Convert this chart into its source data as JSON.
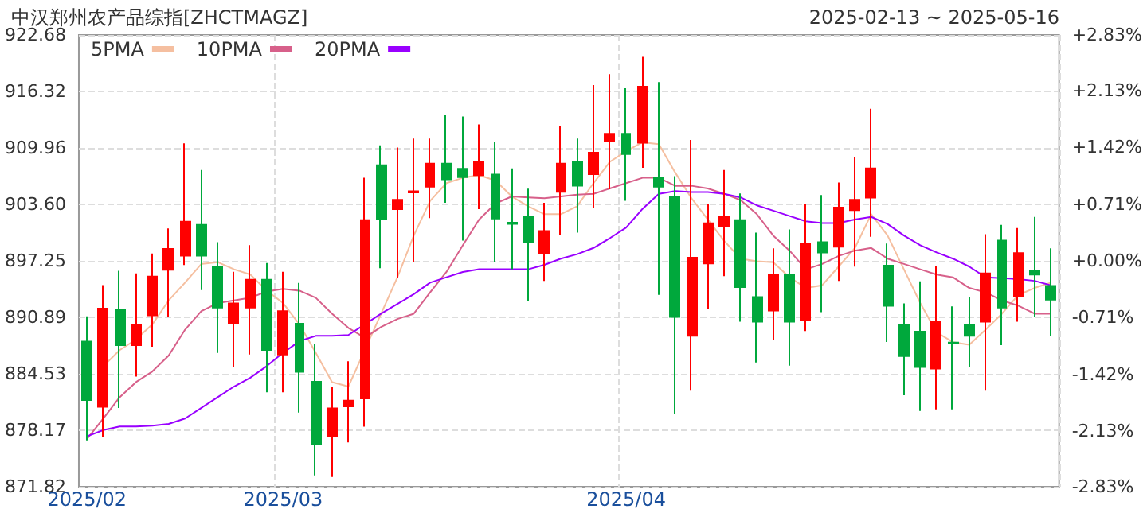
{
  "chart_data": {
    "type": "candlestick",
    "title": "中汉郑州农产品综指[ZHCTMAGZ]",
    "subtitle": "2025-02-13 ~ 2025-05-16",
    "categories": [
      "2025/02",
      null,
      null,
      null,
      null,
      null,
      null,
      null,
      null,
      null,
      null,
      null,
      "2025/03",
      null,
      null,
      null,
      null,
      null,
      null,
      null,
      null,
      null,
      null,
      null,
      null,
      null,
      null,
      null,
      null,
      null,
      null,
      null,
      null,
      "2025/04",
      null,
      null,
      null,
      null,
      null,
      null,
      null,
      null,
      null,
      null,
      null,
      null,
      null,
      null,
      null,
      null,
      null,
      null,
      null,
      null,
      null,
      null,
      null,
      null,
      null,
      null
    ],
    "ohlc": [
      [
        888.17,
        891.0,
        877.04,
        881.58
      ],
      [
        880.81,
        894.53,
        877.46,
        891.88
      ],
      [
        891.77,
        896.12,
        880.69,
        887.76
      ],
      [
        887.76,
        895.83,
        884.23,
        890.0
      ],
      [
        891.12,
        898.07,
        887.58,
        895.48
      ],
      [
        896.24,
        900.89,
        890.94,
        898.6
      ],
      [
        897.83,
        910.49,
        896.77,
        901.66
      ],
      [
        901.31,
        907.49,
        893.95,
        897.83
      ],
      [
        896.54,
        899.36,
        886.88,
        892.0
      ],
      [
        890.24,
        896.01,
        885.29,
        892.47
      ],
      [
        892.0,
        899.01,
        886.7,
        895.12
      ],
      [
        895.12,
        897.01,
        882.46,
        887.23
      ],
      [
        886.7,
        896.01,
        882.46,
        891.59
      ],
      [
        890.18,
        894.77,
        880.17,
        884.76
      ],
      [
        883.64,
        887.88,
        873.1,
        876.63
      ],
      [
        877.51,
        883.11,
        872.92,
        880.64
      ],
      [
        880.87,
        885.94,
        876.81,
        881.52
      ],
      [
        881.75,
        906.61,
        878.57,
        901.84
      ],
      [
        908.02,
        910.26,
        896.42,
        901.9
      ],
      [
        903.07,
        910.02,
        895.3,
        904.13
      ],
      [
        904.96,
        911.02,
        897.07,
        905.08
      ],
      [
        905.6,
        911.02,
        902.07,
        908.2
      ],
      [
        908.2,
        913.67,
        903.78,
        906.43
      ],
      [
        907.61,
        913.5,
        899.54,
        906.67
      ],
      [
        906.9,
        912.61,
        903.07,
        908.37
      ],
      [
        906.96,
        910.67,
        897.07,
        902.01
      ],
      [
        901.54,
        907.67,
        896.3,
        901.42
      ],
      [
        902.19,
        905.37,
        892.71,
        899.37
      ],
      [
        898.13,
        903.78,
        895.0,
        900.6
      ],
      [
        905.02,
        912.44,
        900.13,
        908.2
      ],
      [
        908.37,
        911.02,
        900.42,
        905.72
      ],
      [
        907.02,
        917.03,
        903.25,
        909.43
      ],
      [
        910.73,
        918.27,
        905.31,
        911.55
      ],
      [
        911.55,
        916.68,
        904.02,
        909.26
      ],
      [
        910.55,
        920.21,
        907.73,
        916.85
      ],
      [
        906.61,
        917.38,
        893.42,
        905.6
      ],
      [
        904.49,
        906.78,
        879.99,
        890.94
      ],
      [
        888.82,
        910.85,
        882.64,
        897.6
      ],
      [
        896.95,
        903.66,
        891.83,
        901.48
      ],
      [
        901.19,
        907.49,
        895.53,
        902.19
      ],
      [
        901.84,
        904.84,
        890.41,
        894.3
      ],
      [
        893.18,
        900.42,
        885.82,
        890.41
      ],
      [
        891.65,
        898.66,
        888.29,
        895.65
      ],
      [
        895.65,
        900.78,
        885.46,
        890.41
      ],
      [
        890.59,
        903.6,
        889.35,
        899.19
      ],
      [
        899.36,
        904.66,
        891.47,
        898.18
      ],
      [
        898.83,
        906.08,
        895.0,
        903.25
      ],
      [
        902.96,
        908.9,
        896.59,
        904.13
      ],
      [
        904.37,
        914.38,
        899.95,
        907.67
      ],
      [
        896.71,
        899.19,
        888.12,
        892.18
      ],
      [
        890.0,
        892.47,
        882.11,
        886.52
      ],
      [
        889.29,
        894.95,
        880.34,
        885.29
      ],
      [
        885.11,
        896.71,
        880.52,
        890.35
      ],
      [
        888.06,
        892.12,
        880.52,
        887.94
      ],
      [
        890.0,
        893.18,
        885.29,
        888.82
      ],
      [
        890.41,
        900.25,
        882.64,
        895.83
      ],
      [
        899.54,
        901.31,
        887.76,
        892.0
      ],
      [
        893.24,
        900.95,
        890.41,
        898.13
      ],
      [
        896.12,
        902.19,
        890.94,
        895.71
      ],
      [
        894.42,
        898.66,
        888.82,
        892.89
      ]
    ],
    "colors": [
      "#00a83c",
      "#ff0000",
      "#00a83c",
      "#ff0000",
      "#ff0000",
      "#ff0000",
      "#ff0000",
      "#00a83c",
      "#00a83c",
      "#ff0000",
      "#ff0000",
      "#00a83c",
      "#ff0000",
      "#00a83c",
      "#00a83c",
      "#ff0000",
      "#ff0000",
      "#ff0000",
      "#00a83c",
      "#ff0000",
      "#ff0000",
      "#ff0000",
      "#00a83c",
      "#00a83c",
      "#ff0000",
      "#00a83c",
      "#00a83c",
      "#00a83c",
      "#ff0000",
      "#ff0000",
      "#00a83c",
      "#ff0000",
      "#ff0000",
      "#00a83c",
      "#ff0000",
      "#00a83c",
      "#00a83c",
      "#ff0000",
      "#ff0000",
      "#ff0000",
      "#00a83c",
      "#00a83c",
      "#ff0000",
      "#00a83c",
      "#ff0000",
      "#00a83c",
      "#ff0000",
      "#ff0000",
      "#ff0000",
      "#00a83c",
      "#00a83c",
      "#00a83c",
      "#ff0000",
      "#00a83c",
      "#00a83c",
      "#ff0000",
      "#00a83c",
      "#ff0000",
      "#00a83c",
      "#00a83c"
    ],
    "series": [
      {
        "type": "line",
        "name": "5PMA",
        "color": "#f5bfa0",
        "values": [
          null,
          885.4,
          887.2,
          888.4,
          890.1,
          892.8,
          894.8,
          896.9,
          897.1,
          896.3,
          895.7,
          893.9,
          892.5,
          890.1,
          886.9,
          883.6,
          883.1,
          null,
          891.3,
          895.4,
          900.1,
          904.0,
          906.0,
          906.6,
          906.9,
          906.3,
          904.5,
          903.4,
          902.5,
          902.5,
          903.4,
          906.0,
          908.4,
          909.6,
          910.6,
          910.4,
          907.2,
          904.3,
          901.9,
          899.5,
          897.5,
          897.2,
          897.1,
          895.4,
          894.2,
          894.5,
          896.6,
          898.7,
          902.5,
          900.1,
          896.3,
          892.5,
          889.2,
          888.1,
          887.8,
          889.5,
          891.3,
          893.4,
          894.2,
          894.8
        ]
      },
      {
        "type": "line",
        "name": "10PMA",
        "color": "#d7608a",
        "values": [
          877.2,
          879.5,
          881.9,
          883.6,
          884.8,
          886.6,
          889.5,
          891.6,
          892.5,
          892.8,
          893.1,
          893.8,
          894.1,
          893.9,
          893.1,
          891.3,
          889.7,
          888.6,
          889.8,
          890.7,
          891.3,
          893.7,
          896.0,
          899.0,
          901.9,
          903.7,
          904.5,
          904.4,
          904.3,
          904.5,
          904.7,
          904.8,
          905.4,
          906.0,
          906.6,
          906.6,
          905.7,
          905.7,
          905.4,
          904.8,
          904.1,
          902.5,
          900.1,
          898.4,
          896.3,
          896.9,
          897.8,
          898.4,
          898.7,
          897.5,
          896.9,
          896.3,
          895.7,
          895.4,
          894.2,
          893.7,
          892.8,
          892.2,
          891.3,
          891.3
        ]
      },
      {
        "type": "line",
        "name": "20PMA",
        "color": "#9900ff",
        "values": [
          877.5,
          878.2,
          878.6,
          878.6,
          878.7,
          878.9,
          879.5,
          880.7,
          881.9,
          883.1,
          884.1,
          885.4,
          886.9,
          888.2,
          888.8,
          888.8,
          888.9,
          890.1,
          891.3,
          892.4,
          893.5,
          894.8,
          895.4,
          896.0,
          896.3,
          896.3,
          896.3,
          896.3,
          896.8,
          897.5,
          898.0,
          898.7,
          899.8,
          901.0,
          903.1,
          904.8,
          905.1,
          905.0,
          905.0,
          904.8,
          904.4,
          903.5,
          902.9,
          902.3,
          901.7,
          901.5,
          901.5,
          901.9,
          902.2,
          901.4,
          900.1,
          899.0,
          898.2,
          897.5,
          896.6,
          895.4,
          895.3,
          895.2,
          895.0,
          894.5
        ]
      }
    ],
    "ylim": [
      871.82,
      922.68
    ],
    "yticks": [
      871.82,
      878.17,
      884.53,
      890.89,
      897.25,
      {
        "value": 903.6,
        "label": "903.60"
      },
      909.96,
      916.32,
      922.68
    ],
    "y2lim": [
      -2.83,
      2.83
    ],
    "y2ticks": [
      {
        "value": -2.83,
        "label": "-2.83%"
      },
      {
        "value": -2.13,
        "label": "-2.13%"
      },
      {
        "value": -1.42,
        "label": "-1.42%"
      },
      {
        "value": -0.71,
        "label": "-0.71%"
      },
      {
        "value": 0,
        "label": "+0.00%"
      },
      {
        "value": 0.71,
        "label": "+0.71%"
      },
      {
        "value": 1.42,
        "label": "+1.42%"
      },
      {
        "value": 2.13,
        "label": "+2.13%"
      },
      {
        "value": 2.83,
        "label": "+2.83%"
      }
    ],
    "grid": true,
    "legend": "top left",
    "marker": "none"
  }
}
